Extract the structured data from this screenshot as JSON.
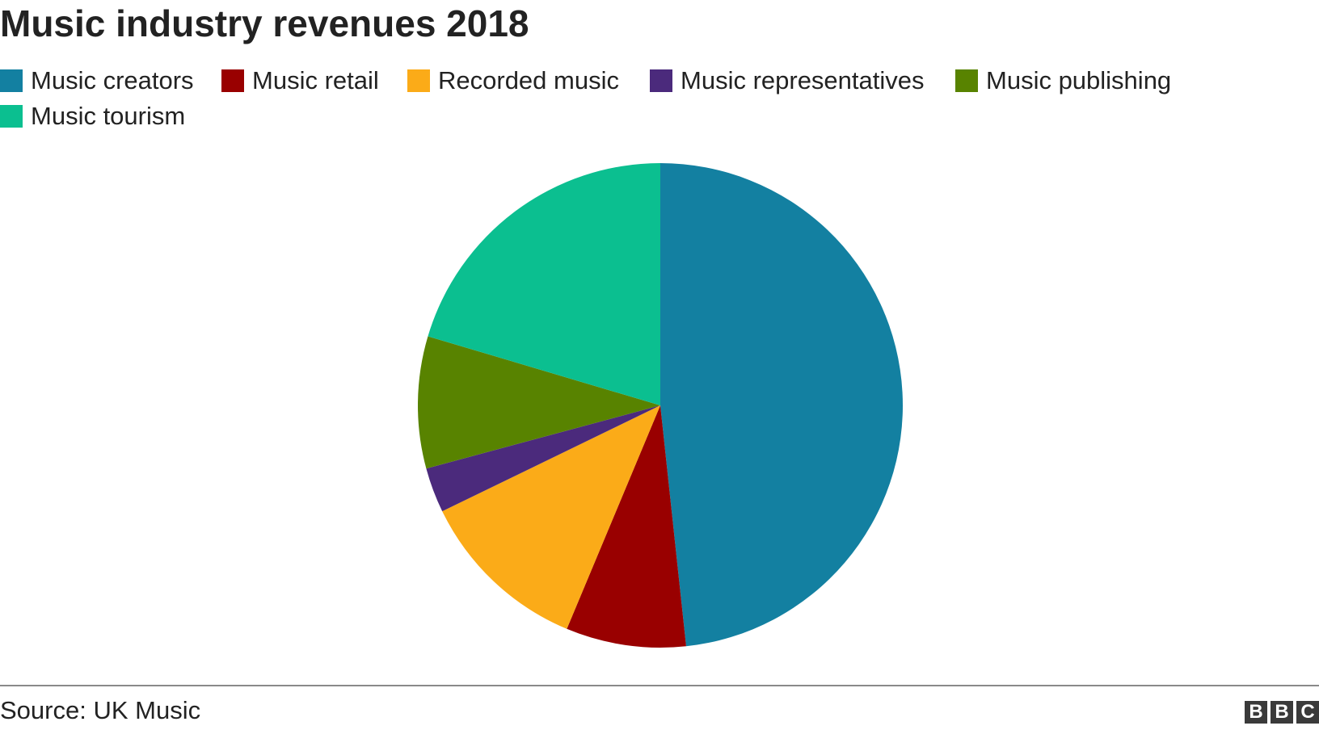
{
  "chart_data": {
    "type": "pie",
    "title": "Music industry revenues 2018",
    "legend_placement": "top-left",
    "categories": [
      "Music creators",
      "Music retail",
      "Recorded music",
      "Music representatives",
      "Music publishing",
      "Music tourism"
    ],
    "values": [
      48.3,
      8.0,
      11.5,
      3.0,
      8.8,
      20.4
    ],
    "unit": "% of total",
    "colors": [
      "#1380a1",
      "#990000",
      "#fbab18",
      "#4b2a7c",
      "#588300",
      "#0bbf90"
    ],
    "start_angle_deg": 0,
    "direction": "clockwise"
  },
  "footer": {
    "source": "Source: UK Music",
    "logo_letters": [
      "B",
      "B",
      "C"
    ]
  }
}
